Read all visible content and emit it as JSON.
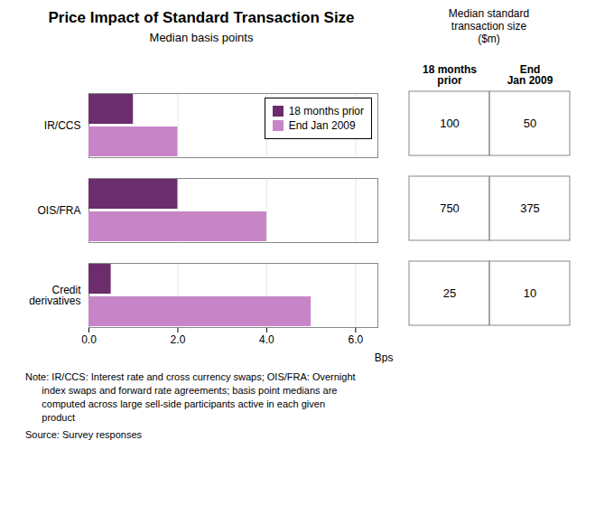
{
  "chart_data": {
    "type": "bar",
    "orientation": "horizontal",
    "title": "Price Impact of Standard Transaction Size",
    "subtitle": "Median basis points",
    "categories": [
      "IR/CCS",
      "OIS/FRA",
      "Credit\nderivatives"
    ],
    "series": [
      {
        "name": "18 months prior",
        "color": "#6B2D6B",
        "values": [
          1.0,
          2.0,
          0.5
        ]
      },
      {
        "name": "End Jan 2009",
        "color": "#C785C8",
        "values": [
          2.0,
          4.0,
          5.0
        ]
      }
    ],
    "xlim": [
      0,
      6.5
    ],
    "xticks": [
      0,
      2,
      4,
      6
    ],
    "xlabel": "Bps",
    "grid": true,
    "legend": "upper right",
    "table": {
      "title": "Median standard\ntransaction size\n($m)",
      "columns": [
        {
          "name": "18 months\nprior",
          "values": [
            100,
            750,
            25
          ]
        },
        {
          "name": "End\nJan 2009",
          "values": [
            50,
            375,
            10
          ]
        }
      ]
    },
    "notes": [
      "Note: IR/CCS: Interest rate and cross currency swaps; OIS/FRA: Overnight",
      "      index swaps and forward rate agreements; basis point medians are",
      "      computed across large sell-side participants active in each given",
      "      product"
    ],
    "source": "Source: Survey responses"
  }
}
